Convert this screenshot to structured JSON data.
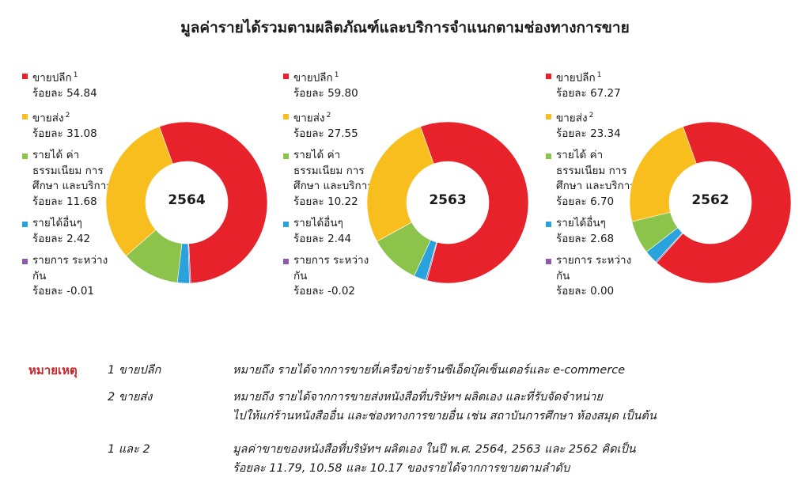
{
  "title": "มูลค่ารายได้รวมตามผลิตภัณฑ์และบริการจำแนกตามช่องทางการขาย",
  "colors": {
    "retail": "#e8222a",
    "wholesale": "#f7be1e",
    "tuition": "#8cc34a",
    "other": "#2aa3dc",
    "intercompany": "#8e5bab"
  },
  "chart_data": [
    {
      "type": "pie",
      "center_label": "2564",
      "slices": [
        {
          "key": "retail",
          "label": "ขายปลีก",
          "sup": "1",
          "value_text": "ร้อยละ 54.84",
          "value": 54.84
        },
        {
          "key": "wholesale",
          "label": "ขายส่ง",
          "sup": "2",
          "value_text": "ร้อยละ 31.08",
          "value": 31.08
        },
        {
          "key": "tuition",
          "label": "รายได้ ค่าธรรมเนียม การศึกษา และบริการ",
          "sup": "",
          "value_text": "ร้อยละ 11.68",
          "value": 11.68
        },
        {
          "key": "other",
          "label": "รายได้อื่นๆ",
          "sup": "",
          "value_text": "ร้อยละ 2.42",
          "value": 2.42
        },
        {
          "key": "intercompany",
          "label": "รายการ ระหว่างกัน",
          "sup": "",
          "value_text": "ร้อยละ -0.01",
          "value": -0.01
        }
      ]
    },
    {
      "type": "pie",
      "center_label": "2563",
      "slices": [
        {
          "key": "retail",
          "label": "ขายปลีก",
          "sup": "1",
          "value_text": "ร้อยละ 59.80",
          "value": 59.8
        },
        {
          "key": "wholesale",
          "label": "ขายส่ง",
          "sup": "2",
          "value_text": "ร้อยละ 27.55",
          "value": 27.55
        },
        {
          "key": "tuition",
          "label": "รายได้ ค่าธรรมเนียม การศึกษา และบริการ",
          "sup": "",
          "value_text": "ร้อยละ 10.22",
          "value": 10.22
        },
        {
          "key": "other",
          "label": "รายได้อื่นๆ",
          "sup": "",
          "value_text": "ร้อยละ 2.44",
          "value": 2.44
        },
        {
          "key": "intercompany",
          "label": "รายการ ระหว่างกัน",
          "sup": "",
          "value_text": "ร้อยละ -0.02",
          "value": -0.02
        }
      ]
    },
    {
      "type": "pie",
      "center_label": "2562",
      "slices": [
        {
          "key": "retail",
          "label": "ขายปลีก",
          "sup": "1",
          "value_text": "ร้อยละ 67.27",
          "value": 67.27
        },
        {
          "key": "wholesale",
          "label": "ขายส่ง",
          "sup": "2",
          "value_text": "ร้อยละ 23.34",
          "value": 23.34
        },
        {
          "key": "tuition",
          "label": "รายได้ ค่าธรรมเนียม การศึกษา และบริการ",
          "sup": "",
          "value_text": "ร้อยละ 6.70",
          "value": 6.7
        },
        {
          "key": "other",
          "label": "รายได้อื่นๆ",
          "sup": "",
          "value_text": "ร้อยละ 2.68",
          "value": 2.68
        },
        {
          "key": "intercompany",
          "label": "รายการ ระหว่างกัน",
          "sup": "",
          "value_text": "ร้อยละ 0.00",
          "value": 0.0
        }
      ]
    }
  ],
  "notes": {
    "heading": "หมายเหตุ",
    "items": [
      {
        "key": "1 ขายปลีก",
        "text": "หมายถึง รายได้จากการขายที่เครือข่ายร้านซีเอ็ดบุ๊คเซ็นเตอร์และ e-commerce"
      },
      {
        "key": "2 ขายส่ง",
        "text": "หมายถึง รายได้จากการขายส่งหนังสือที่บริษัทฯ ผลิตเอง และที่รับจัดจำหน่าย\nไปให้แก่ร้านหนังสืออื่น และช่องทางการขายอื่น เช่น สถาบันการศึกษา ห้องสมุด เป็นต้น"
      },
      {
        "key": "1 และ 2",
        "text": "มูลค่าขายของหนังสือที่บริษัทฯ ผลิตเอง ในปี พ.ศ. 2564, 2563 และ 2562 คิดเป็น\nร้อยละ 11.79, 10.58 และ 10.17  ของรายได้จากการขายตามลำดับ"
      }
    ]
  }
}
